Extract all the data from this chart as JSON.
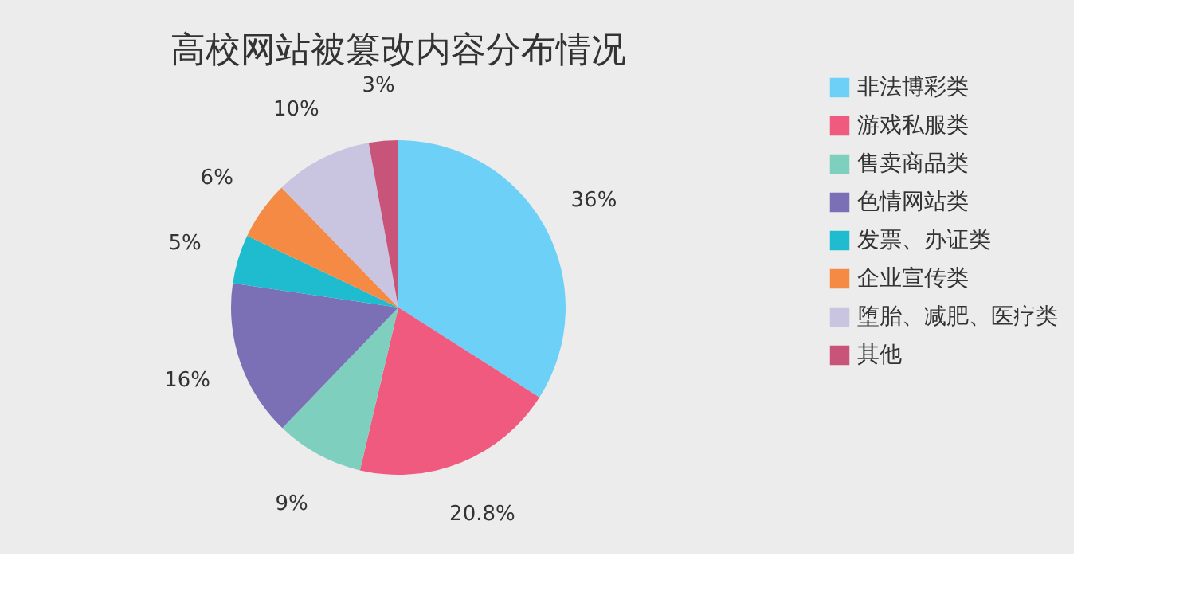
{
  "chart_data": {
    "type": "pie",
    "title": "高校网站被篡改内容分布情况",
    "categories": [
      "非法博彩类",
      "游戏私服类",
      "售卖商品类",
      "色情网站类",
      "发票、办证类",
      "企业宣传类",
      "堕胎、减肥、医疗类",
      "其他"
    ],
    "values": [
      36,
      20.8,
      9,
      16,
      5,
      6,
      10,
      3
    ],
    "value_labels": [
      "36%",
      "20.8%",
      "9%",
      "16%",
      "5%",
      "6%",
      "10%",
      "3%"
    ],
    "colors": [
      "#6dd0f7",
      "#ef5a7e",
      "#7fcfbf",
      "#7b6fb5",
      "#1fbcd0",
      "#f58a45",
      "#c9c5e0",
      "#c8547a"
    ],
    "legend": "right"
  }
}
